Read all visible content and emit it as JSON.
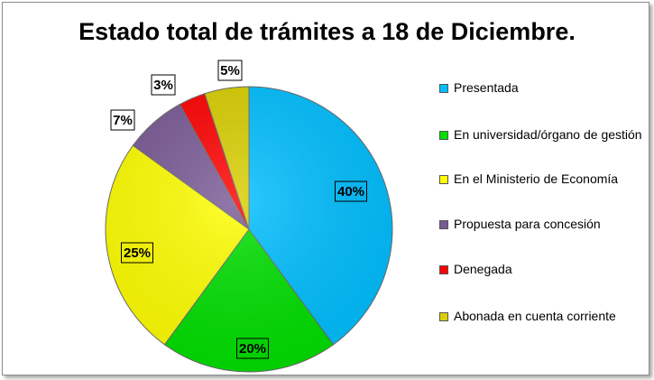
{
  "chart_data": {
    "type": "pie",
    "title": "Estado total de trámites a 18 de Diciembre.",
    "categories": [
      "Presentada",
      "En universidad/órgano de gestión",
      "En el Ministerio de Economía",
      "Propuesta para concesión",
      "Denegada",
      "Abonada en cuenta corriente"
    ],
    "values": [
      40,
      20,
      25,
      7,
      3,
      5
    ],
    "value_labels": [
      "40%",
      "20%",
      "25%",
      "7%",
      "3%",
      "5%"
    ],
    "colors": [
      "#00bfff",
      "#00e000",
      "#ffff00",
      "#7a5a96",
      "#ff0000",
      "#d9cf00"
    ],
    "legend_position": "right"
  }
}
